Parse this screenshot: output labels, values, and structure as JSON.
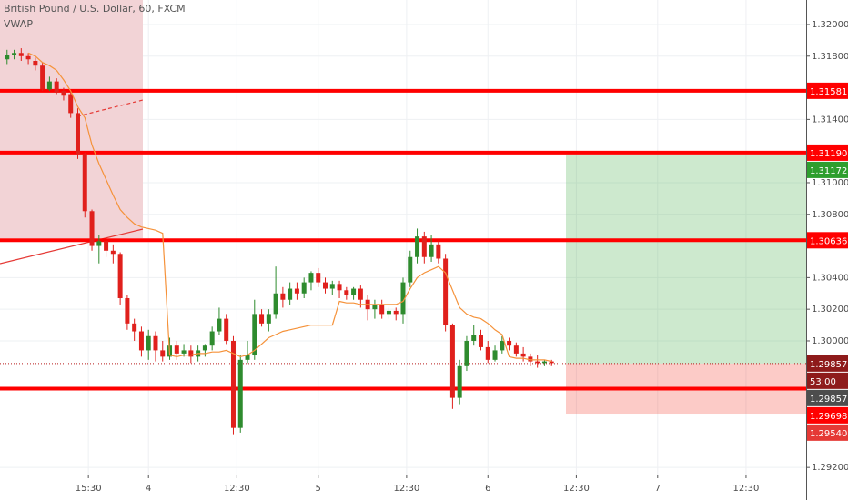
{
  "chart_data": {
    "type": "candlestick",
    "title": "British Pound / U.S. Dollar, 60, FXCM",
    "x": [
      -20,
      -19,
      -18,
      -17,
      -16,
      -15,
      -14,
      -13,
      -12,
      -11,
      -10,
      -9,
      -8,
      -7,
      -6,
      -5,
      -4,
      -3,
      -2,
      -1,
      0,
      1,
      2,
      3,
      4,
      5,
      6,
      7,
      8,
      9,
      10,
      11,
      12,
      13,
      14,
      15,
      16,
      17,
      18,
      19,
      20,
      21,
      22,
      23,
      24,
      25,
      26,
      27,
      28,
      29,
      30,
      31,
      32,
      33,
      34,
      35,
      36,
      37,
      38,
      39,
      40,
      41,
      42,
      43,
      44,
      45,
      46,
      47,
      48,
      49,
      50,
      51,
      52,
      53,
      54,
      55,
      56,
      57
    ],
    "open": [
      1.3178,
      1.3181,
      1.3182,
      1.318,
      1.3177,
      1.3174,
      1.3159,
      1.3164,
      1.3158,
      1.3156,
      1.3144,
      1.3118,
      1.3082,
      1.306,
      1.3063,
      1.3057,
      1.3055,
      1.3027,
      1.3011,
      1.3006,
      1.2994,
      1.3003,
      1.2994,
      1.299,
      1.2997,
      1.2992,
      1.2994,
      1.299,
      1.2994,
      1.2997,
      1.3006,
      1.3014,
      1.3,
      1.2945,
      1.2988,
      1.2991,
      1.3017,
      1.3011,
      1.3017,
      1.303,
      1.3026,
      1.3033,
      1.303,
      1.3037,
      1.3043,
      1.3037,
      1.3033,
      1.3036,
      1.3032,
      1.3029,
      1.3033,
      1.3026,
      1.302,
      1.3023,
      1.3017,
      1.3019,
      1.3017,
      1.3037,
      1.3053,
      1.3066,
      1.3053,
      1.3061,
      1.3052,
      1.301,
      1.2964,
      1.2984,
      1.3,
      1.3004,
      1.2996,
      1.2988,
      1.2994,
      1.3,
      1.2997,
      1.2992,
      1.299,
      1.2987,
      1.2986,
      1.2987
    ],
    "high": [
      1.3184,
      1.3184,
      1.3185,
      1.3182,
      1.3179,
      1.3176,
      1.3167,
      1.3166,
      1.316,
      1.3158,
      1.3147,
      1.3119,
      1.3083,
      1.3067,
      1.3065,
      1.3061,
      1.3056,
      1.3029,
      1.3014,
      1.3009,
      1.3007,
      1.3006,
      1.3,
      1.3002,
      1.3,
      1.2998,
      1.2997,
      1.2997,
      1.2998,
      1.3009,
      1.3021,
      1.3017,
      1.3003,
      1.2991,
      1.3,
      1.3026,
      1.302,
      1.302,
      1.3047,
      1.3034,
      1.3037,
      1.3037,
      1.304,
      1.3044,
      1.3046,
      1.304,
      1.3038,
      1.3038,
      1.3034,
      1.3034,
      1.3035,
      1.3029,
      1.3026,
      1.3026,
      1.3021,
      1.3021,
      1.304,
      1.3057,
      1.3071,
      1.3069,
      1.3067,
      1.3063,
      1.3055,
      1.3011,
      1.2988,
      1.3003,
      1.301,
      1.3007,
      1.3,
      1.2997,
      1.3003,
      1.3002,
      1.2999,
      1.2996,
      1.2992,
      1.2991,
      1.2988,
      1.2988
    ],
    "low": [
      1.3175,
      1.3178,
      1.3177,
      1.3175,
      1.3171,
      1.3158,
      1.3158,
      1.3156,
      1.3152,
      1.3141,
      1.3115,
      1.3078,
      1.3057,
      1.3049,
      1.3053,
      1.3049,
      1.3023,
      1.3007,
      1.3,
      1.299,
      1.2988,
      1.2987,
      1.2987,
      1.2988,
      1.2988,
      1.299,
      1.2986,
      1.2987,
      1.299,
      1.2994,
      1.3004,
      1.2998,
      1.2941,
      1.2942,
      1.2986,
      1.2988,
      1.3009,
      1.3006,
      1.3014,
      1.3021,
      1.3023,
      1.3026,
      1.3027,
      1.3032,
      1.3034,
      1.303,
      1.3029,
      1.3027,
      1.3026,
      1.3026,
      1.3021,
      1.3013,
      1.3014,
      1.3014,
      1.3014,
      1.3013,
      1.3011,
      1.3034,
      1.3049,
      1.3049,
      1.305,
      1.3049,
      1.3006,
      1.2957,
      1.296,
      1.2981,
      1.2997,
      1.2994,
      1.2986,
      1.2987,
      1.2992,
      1.2994,
      1.299,
      1.2987,
      1.2984,
      1.2983,
      1.2984,
      1.2984
    ],
    "close": [
      1.3181,
      1.3182,
      1.318,
      1.3178,
      1.3174,
      1.3159,
      1.3164,
      1.3157,
      1.3155,
      1.3144,
      1.3118,
      1.3082,
      1.306,
      1.3063,
      1.3057,
      1.3055,
      1.3027,
      1.3011,
      1.3006,
      1.2994,
      1.3003,
      1.2994,
      1.299,
      1.2997,
      1.2992,
      1.2994,
      1.299,
      1.2994,
      1.2997,
      1.3006,
      1.3014,
      1.3,
      1.2945,
      1.2988,
      1.2991,
      1.3017,
      1.3011,
      1.3017,
      1.303,
      1.3026,
      1.3033,
      1.303,
      1.3037,
      1.3043,
      1.3037,
      1.3033,
      1.3036,
      1.3032,
      1.3029,
      1.3033,
      1.3026,
      1.302,
      1.3023,
      1.3017,
      1.3019,
      1.3017,
      1.3037,
      1.3053,
      1.3066,
      1.3053,
      1.3061,
      1.3052,
      1.301,
      1.2964,
      1.2984,
      1.3,
      1.3004,
      1.2996,
      1.2988,
      1.2994,
      1.3,
      1.2997,
      1.2992,
      1.299,
      1.2987,
      1.2986,
      1.2987,
      1.2986
    ],
    "up_color": "#2e8b2e",
    "down_color": "#e0201c",
    "series": [
      {
        "name": "VWAP",
        "color": "#f5923a",
        "values": [
          null,
          null,
          null,
          1.3182,
          1.318,
          1.3176,
          1.3174,
          1.3171,
          1.3165,
          1.3158,
          1.3148,
          1.3141,
          1.3124,
          1.3112,
          1.3102,
          1.3092,
          1.3083,
          1.3078,
          1.3074,
          1.3072,
          1.3071,
          1.307,
          1.3068,
          1.2991,
          1.299,
          1.2991,
          1.2991,
          1.2992,
          1.2992,
          1.2993,
          1.2993,
          1.2994,
          1.2992,
          1.299,
          1.2991,
          1.2994,
          1.2998,
          1.3002,
          1.3004,
          1.3006,
          1.3007,
          1.3008,
          1.3009,
          1.301,
          1.301,
          1.301,
          1.301,
          1.3025,
          1.3024,
          1.3024,
          1.3023,
          1.3023,
          1.3023,
          1.3023,
          1.3023,
          1.3023,
          1.3025,
          1.3033,
          1.304,
          1.3043,
          1.3045,
          1.3047,
          1.3043,
          1.3032,
          1.3021,
          1.3017,
          1.3015,
          1.3014,
          1.3011,
          1.3007,
          1.3004,
          1.299,
          1.2989,
          1.2989,
          1.2988,
          1.2988,
          1.2988,
          1.2987
        ]
      }
    ],
    "levels": [
      {
        "value": 1.31581,
        "label": "1.31581"
      },
      {
        "value": 1.3119,
        "label": "1.31190"
      },
      {
        "value": 1.30636,
        "label": "1.30636"
      },
      {
        "value": 1.29698,
        "label": "1.29698"
      }
    ],
    "level_color": "#ff0000",
    "last_price": {
      "value": 1.29857,
      "label": "1.29857"
    },
    "countdown": "53:00",
    "position": {
      "target": {
        "value": 1.31172,
        "label": "1.31172"
      },
      "entry": {
        "value": 1.29857,
        "label": "1.29857"
      },
      "stop": {
        "value": 1.2954,
        "label": "1.29540"
      }
    },
    "xlim": [
      -21,
      93
    ],
    "ylim": [
      1.29155,
      1.32155
    ],
    "xticks": [
      {
        "value": -8.5,
        "label": "15:30"
      },
      {
        "value": 0,
        "label": "4"
      },
      {
        "value": 12.5,
        "label": "12:30"
      },
      {
        "value": 24,
        "label": "5"
      },
      {
        "value": 36.5,
        "label": "12:30"
      },
      {
        "value": 48,
        "label": "6"
      },
      {
        "value": 60.5,
        "label": "12:30"
      },
      {
        "value": 72,
        "label": "7"
      },
      {
        "value": 84.5,
        "label": "12:30"
      }
    ],
    "yticks": [
      {
        "value": 1.32,
        "label": "1.32000"
      },
      {
        "value": 1.318,
        "label": "1.31800"
      },
      {
        "value": 1.314,
        "label": "1.31400"
      },
      {
        "value": 1.31,
        "label": "1.31000"
      },
      {
        "value": 1.308,
        "label": "1.30800"
      },
      {
        "value": 1.304,
        "label": "1.30400"
      },
      {
        "value": 1.302,
        "label": "1.30200"
      },
      {
        "value": 1.3,
        "label": "1.30000"
      },
      {
        "value": 1.292,
        "label": "1.29200"
      }
    ],
    "grid": true
  }
}
